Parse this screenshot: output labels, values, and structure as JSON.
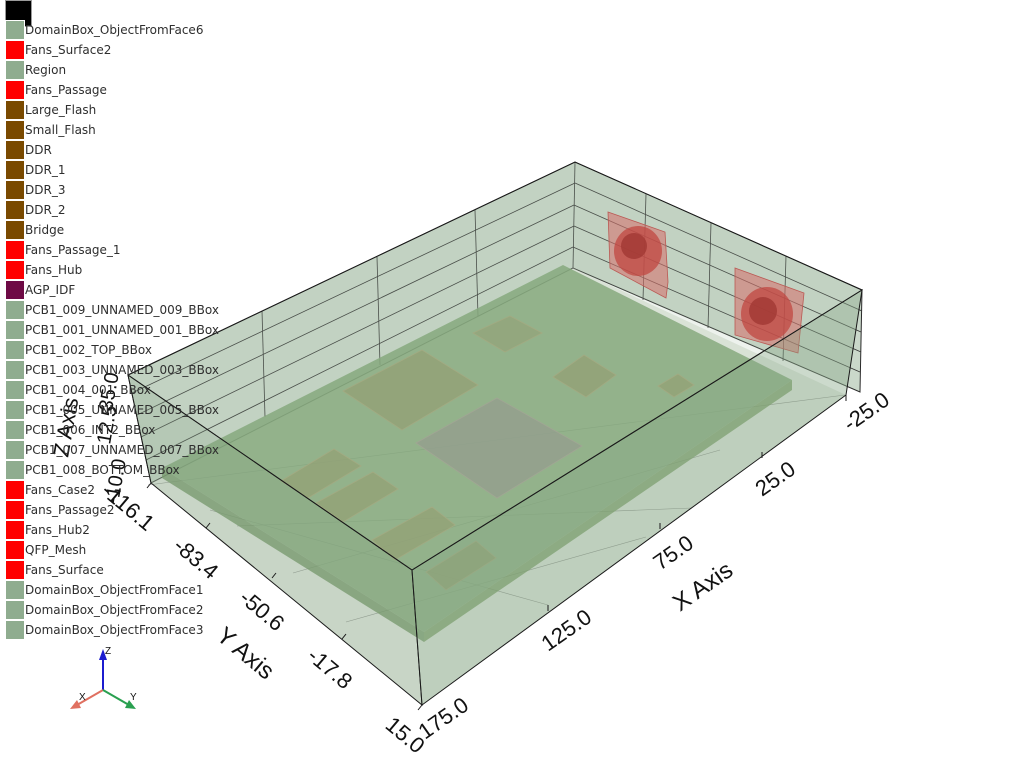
{
  "legend": {
    "items": [
      {
        "label": "DomainBox_ObjectFromFace6",
        "color": "#8fac8f"
      },
      {
        "label": "Fans_Surface2",
        "color": "#ff0000"
      },
      {
        "label": "Region",
        "color": "#8fac8f"
      },
      {
        "label": "Fans_Passage",
        "color": "#ff0000"
      },
      {
        "label": "Large_Flash",
        "color": "#7a4a00"
      },
      {
        "label": "Small_Flash",
        "color": "#7a4a00"
      },
      {
        "label": "DDR",
        "color": "#7a4a00"
      },
      {
        "label": "DDR_1",
        "color": "#7a4a00"
      },
      {
        "label": "DDR_3",
        "color": "#7a4a00"
      },
      {
        "label": "DDR_2",
        "color": "#7a4a00"
      },
      {
        "label": "Bridge",
        "color": "#7a4a00"
      },
      {
        "label": "Fans_Passage_1",
        "color": "#ff0000"
      },
      {
        "label": "Fans_Hub",
        "color": "#ff0000"
      },
      {
        "label": "AGP_IDF",
        "color": "#6e0a45"
      },
      {
        "label": "PCB1_009_UNNAMED_009_BBox",
        "color": "#8fac8f"
      },
      {
        "label": "PCB1_001_UNNAMED_001_BBox",
        "color": "#8fac8f"
      },
      {
        "label": "PCB1_002_TOP_BBox",
        "color": "#8fac8f"
      },
      {
        "label": "PCB1_003_UNNAMED_003_BBox",
        "color": "#8fac8f"
      },
      {
        "label": "PCB1_004_001_BBox",
        "color": "#8fac8f"
      },
      {
        "label": "PCB1_005_UNNAMED_005_BBox",
        "color": "#8fac8f"
      },
      {
        "label": "PCB1_006_INT2_BBox",
        "color": "#8fac8f"
      },
      {
        "label": "PCB1_007_UNNAMED_007_BBox",
        "color": "#8fac8f"
      },
      {
        "label": "PCB1_008_BOTTOM_BBox",
        "color": "#8fac8f"
      },
      {
        "label": "Fans_Case2",
        "color": "#ff0000"
      },
      {
        "label": "Fans_Passage2",
        "color": "#ff0000"
      },
      {
        "label": "Fans_Hub2",
        "color": "#ff0000"
      },
      {
        "label": "QFP_Mesh",
        "color": "#ff0000"
      },
      {
        "label": "Fans_Surface",
        "color": "#ff0000"
      },
      {
        "label": "DomainBox_ObjectFromFace1",
        "color": "#8fac8f"
      },
      {
        "label": "DomainBox_ObjectFromFace2",
        "color": "#8fac8f"
      },
      {
        "label": "DomainBox_ObjectFromFace3",
        "color": "#8fac8f"
      }
    ]
  },
  "axes": {
    "x_title": "X Axis",
    "y_title": "Y Axis",
    "z_title": "Z Axis",
    "x_ticks": [
      "175.0",
      "125.0",
      "75.0",
      "25.0",
      "-25.0"
    ],
    "y_ticks": [
      "-116.1",
      "-83.4",
      "-50.6",
      "-17.8",
      "15.0"
    ],
    "z_ticks": [
      "-10.0",
      "12.5",
      "35.0"
    ]
  },
  "orientation_widget": {
    "x_label": "X",
    "y_label": "Y",
    "z_label": "Z"
  },
  "colors": {
    "domain_fill": "#8fac8f",
    "board_fill": "#7fa574",
    "chip_fill": "#8f9a6a",
    "fan_red": "#c81e1e",
    "edge": "#1a1a1a"
  }
}
